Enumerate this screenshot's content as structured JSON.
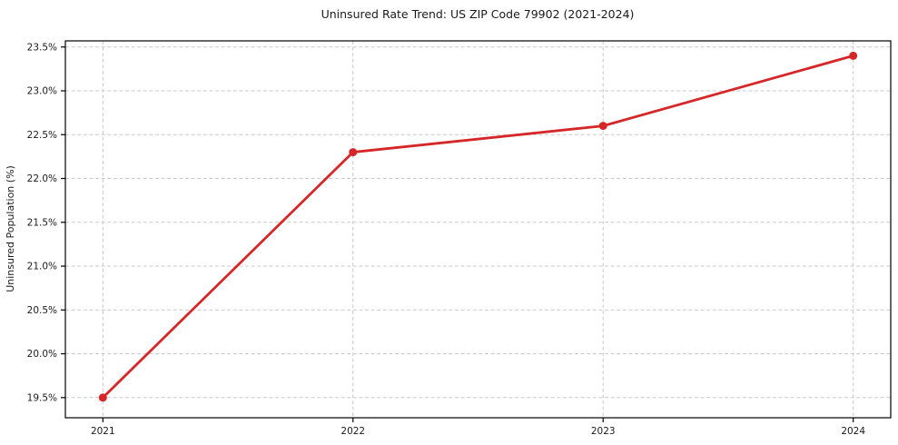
{
  "chart_data": {
    "type": "line",
    "title": "Uninsured Rate Trend: US ZIP Code 79902 (2021-2024)",
    "xlabel": "",
    "ylabel": "Uninsured Population (%)",
    "x": [
      2021,
      2022,
      2023,
      2024
    ],
    "series": [
      {
        "name": "Uninsured rate",
        "values": [
          19.5,
          22.3,
          22.6,
          23.4
        ]
      }
    ],
    "xticks": [
      2021,
      2022,
      2023,
      2024
    ],
    "xtick_labels": [
      "2021",
      "2022",
      "2023",
      "2024"
    ],
    "yticks": [
      19.5,
      20.0,
      20.5,
      21.0,
      21.5,
      22.0,
      22.5,
      23.0,
      23.5
    ],
    "ytick_labels": [
      "19.5%",
      "20.0%",
      "20.5%",
      "21.0%",
      "21.5%",
      "22.0%",
      "22.5%",
      "23.0%",
      "23.5%"
    ],
    "xlim": [
      2020.85,
      2024.15
    ],
    "ylim": [
      19.27,
      23.57
    ],
    "grid": true,
    "legend": "none",
    "colors": {
      "line": "#d62728",
      "marker": "#d62728",
      "grid": "#c9c9c9",
      "axis_border": "#000000",
      "text": "#1a1a1a"
    }
  }
}
